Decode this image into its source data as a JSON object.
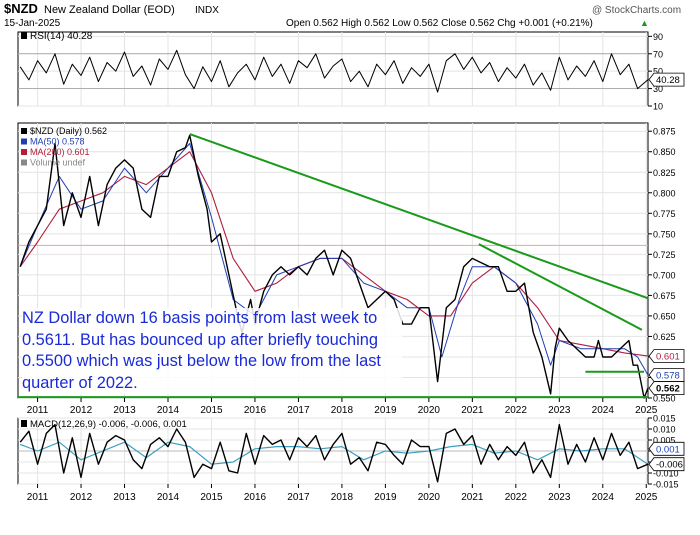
{
  "header": {
    "symbol": "$NZD",
    "name": "New Zealand Dollar (EOD)",
    "exchange": "INDX",
    "date": "15-Jan-2025",
    "ohlc_text": "Open 0.562  High 0.562  Low 0.562  Close 0.562  Chg +0.001 (+0.21%)",
    "ohlc_arrow": "▲",
    "watermark": "@ StockCharts.com"
  },
  "annotation": {
    "text": "NZ Dollar down 16 basis points from last week to 0.5611. But has bounced up after briefly touching 0.5500 which was just below the low from the last quarter of 2022."
  },
  "colors": {
    "price": "#000000",
    "ma50": "#1f3fb4",
    "ma200": "#b01e3c",
    "trendline": "#1a9a1a",
    "annotation_text": "#1a2bd6",
    "macd": "#000000",
    "macd_signal": "#3a9fbf",
    "rsi_line": "#000000",
    "resistance_line": "#f0a0a0"
  },
  "chart_data": [
    {
      "type": "line",
      "panel": "rsi",
      "label": "RSI(14) 40.28",
      "ylim": [
        10,
        95
      ],
      "ticks": [
        "90",
        "70",
        "50",
        "30",
        "10"
      ],
      "tick_values": [
        90,
        70,
        50,
        30,
        10
      ],
      "last_value_label": "40.28",
      "last_value": 40.28,
      "levels": [
        70,
        30
      ],
      "series": [
        {
          "name": "RSI(14)",
          "x": [
            2010.6,
            2010.8,
            2011.0,
            2011.2,
            2011.4,
            2011.6,
            2011.8,
            2012.0,
            2012.2,
            2012.4,
            2012.6,
            2012.8,
            2013.0,
            2013.2,
            2013.4,
            2013.6,
            2013.8,
            2014.0,
            2014.2,
            2014.4,
            2014.6,
            2014.8,
            2015.0,
            2015.2,
            2015.4,
            2015.6,
            2015.8,
            2016.0,
            2016.2,
            2016.4,
            2016.6,
            2016.8,
            2017.0,
            2017.2,
            2017.4,
            2017.6,
            2017.8,
            2018.0,
            2018.2,
            2018.4,
            2018.6,
            2018.8,
            2019.0,
            2019.2,
            2019.4,
            2019.6,
            2019.8,
            2020.0,
            2020.2,
            2020.4,
            2020.6,
            2020.8,
            2021.0,
            2021.2,
            2021.4,
            2021.6,
            2021.8,
            2022.0,
            2022.2,
            2022.4,
            2022.6,
            2022.8,
            2023.0,
            2023.2,
            2023.4,
            2023.6,
            2023.8,
            2024.0,
            2024.2,
            2024.4,
            2024.6,
            2024.8,
            2025.04
          ],
          "values": [
            55,
            40,
            62,
            48,
            70,
            35,
            58,
            45,
            66,
            38,
            60,
            50,
            72,
            44,
            56,
            34,
            64,
            52,
            74,
            46,
            30,
            55,
            38,
            62,
            32,
            48,
            58,
            40,
            66,
            44,
            58,
            36,
            62,
            54,
            70,
            42,
            56,
            64,
            38,
            50,
            32,
            58,
            46,
            62,
            36,
            54,
            44,
            58,
            26,
            62,
            70,
            52,
            66,
            48,
            60,
            38,
            54,
            42,
            58,
            34,
            48,
            28,
            66,
            40,
            56,
            44,
            62,
            38,
            70,
            46,
            58,
            30,
            40.28
          ]
        }
      ]
    },
    {
      "type": "line",
      "panel": "price",
      "ylim": [
        0.55,
        0.885
      ],
      "ticks": [
        "0.875",
        "0.850",
        "0.825",
        "0.800",
        "0.775",
        "0.750",
        "0.725",
        "0.700",
        "0.675",
        "0.650",
        "0.625",
        "0.600",
        "0.575",
        "0.550"
      ],
      "tick_values": [
        0.875,
        0.85,
        0.825,
        0.8,
        0.775,
        0.75,
        0.725,
        0.7,
        0.675,
        0.65,
        0.625,
        0.6,
        0.575,
        0.55
      ],
      "x_ticks": [
        "2011",
        "2012",
        "2013",
        "2014",
        "2015",
        "2016",
        "2017",
        "2018",
        "2019",
        "2020",
        "2021",
        "2022",
        "2023",
        "2024",
        "2025"
      ],
      "x_tick_values": [
        2011,
        2012,
        2013,
        2014,
        2015,
        2016,
        2017,
        2018,
        2019,
        2020,
        2021,
        2022,
        2023,
        2024,
        2025
      ],
      "legend": [
        {
          "label": "$NZD (Daily) 0.562",
          "color": "#000000"
        },
        {
          "label": "MA(50) 0.578",
          "color": "#1f3fb4"
        },
        {
          "label": "MA(200) 0.601",
          "color": "#b01e3c"
        },
        {
          "label": "Volume undef",
          "color": "#888888"
        }
      ],
      "value_badges": [
        {
          "label": "0.601",
          "value": 0.601
        },
        {
          "label": "0.578",
          "value": 0.578
        },
        {
          "label": "0.562",
          "value": 0.562
        }
      ],
      "horizontal_level": 0.736,
      "series": [
        {
          "name": "$NZD (Daily)",
          "x": [
            2010.6,
            2010.8,
            2011.0,
            2011.2,
            2011.4,
            2011.6,
            2011.8,
            2012.0,
            2012.2,
            2012.4,
            2012.6,
            2012.8,
            2013.0,
            2013.2,
            2013.4,
            2013.6,
            2013.8,
            2014.0,
            2014.2,
            2014.4,
            2014.5,
            2014.7,
            2014.9,
            2015.0,
            2015.2,
            2015.4,
            2015.6,
            2015.7,
            2015.9,
            2016.0,
            2016.2,
            2016.4,
            2016.6,
            2016.8,
            2017.0,
            2017.2,
            2017.4,
            2017.6,
            2017.8,
            2018.0,
            2018.2,
            2018.4,
            2018.6,
            2018.8,
            2019.0,
            2019.2,
            2019.4,
            2019.6,
            2019.8,
            2020.0,
            2020.2,
            2020.4,
            2020.6,
            2020.8,
            2021.0,
            2021.2,
            2021.4,
            2021.6,
            2021.8,
            2022.0,
            2022.2,
            2022.4,
            2022.6,
            2022.8,
            2022.9,
            2023.0,
            2023.2,
            2023.4,
            2023.6,
            2023.8,
            2023.9,
            2024.0,
            2024.2,
            2024.4,
            2024.6,
            2024.7,
            2024.8,
            2024.95,
            2025.04
          ],
          "values": [
            0.71,
            0.74,
            0.76,
            0.78,
            0.86,
            0.76,
            0.8,
            0.77,
            0.82,
            0.76,
            0.81,
            0.83,
            0.84,
            0.83,
            0.78,
            0.77,
            0.82,
            0.82,
            0.85,
            0.855,
            0.87,
            0.82,
            0.78,
            0.74,
            0.75,
            0.7,
            0.65,
            0.63,
            0.67,
            0.64,
            0.68,
            0.7,
            0.71,
            0.7,
            0.71,
            0.7,
            0.72,
            0.73,
            0.7,
            0.73,
            0.72,
            0.69,
            0.66,
            0.67,
            0.68,
            0.67,
            0.64,
            0.64,
            0.66,
            0.66,
            0.57,
            0.66,
            0.67,
            0.71,
            0.72,
            0.715,
            0.71,
            0.71,
            0.68,
            0.68,
            0.69,
            0.63,
            0.6,
            0.555,
            0.61,
            0.635,
            0.62,
            0.61,
            0.6,
            0.6,
            0.62,
            0.6,
            0.6,
            0.61,
            0.62,
            0.59,
            0.59,
            0.55,
            0.562
          ]
        },
        {
          "name": "MA(50)",
          "x": [
            2010.6,
            2011.0,
            2011.5,
            2012.0,
            2012.5,
            2013.0,
            2013.5,
            2014.0,
            2014.5,
            2015.0,
            2015.5,
            2016.0,
            2016.5,
            2017.0,
            2017.5,
            2018.0,
            2018.5,
            2019.0,
            2019.5,
            2020.0,
            2020.3,
            2020.7,
            2021.0,
            2021.5,
            2022.0,
            2022.5,
            2022.8,
            2023.0,
            2023.5,
            2024.0,
            2024.5,
            2024.8,
            2025.04
          ],
          "values": [
            0.71,
            0.76,
            0.82,
            0.78,
            0.79,
            0.83,
            0.8,
            0.83,
            0.86,
            0.77,
            0.67,
            0.65,
            0.7,
            0.71,
            0.72,
            0.72,
            0.69,
            0.68,
            0.66,
            0.66,
            0.6,
            0.67,
            0.71,
            0.71,
            0.69,
            0.64,
            0.59,
            0.62,
            0.61,
            0.61,
            0.61,
            0.6,
            0.578
          ]
        },
        {
          "name": "MA(200)",
          "x": [
            2010.6,
            2011.0,
            2011.5,
            2012.0,
            2012.5,
            2013.0,
            2013.5,
            2014.0,
            2014.5,
            2015.0,
            2015.5,
            2016.0,
            2016.5,
            2017.0,
            2017.5,
            2018.0,
            2018.5,
            2019.0,
            2019.5,
            2020.0,
            2020.5,
            2021.0,
            2021.5,
            2022.0,
            2022.5,
            2023.0,
            2023.5,
            2024.0,
            2024.5,
            2025.04
          ],
          "values": [
            0.71,
            0.74,
            0.78,
            0.79,
            0.8,
            0.82,
            0.81,
            0.83,
            0.85,
            0.8,
            0.72,
            0.68,
            0.69,
            0.71,
            0.72,
            0.72,
            0.7,
            0.68,
            0.67,
            0.65,
            0.65,
            0.69,
            0.71,
            0.69,
            0.66,
            0.62,
            0.615,
            0.61,
            0.605,
            0.601
          ]
        }
      ],
      "trendlines": [
        {
          "x": [
            2014.5,
            2025.04
          ],
          "y": [
            0.8715,
            0.6715
          ]
        },
        {
          "x": [
            2021.15,
            2024.9
          ],
          "y": [
            0.7375,
            0.633
          ]
        },
        {
          "x": [
            2023.6,
            2024.95
          ],
          "y": [
            0.582,
            0.582
          ]
        },
        {
          "x": [
            2010.55,
            2025.04
          ],
          "y": [
            0.551,
            0.551
          ]
        }
      ]
    },
    {
      "type": "line",
      "panel": "macd",
      "label": "MACD(12,26,9) -0.006, -0.006, 0.001",
      "ylim": [
        -0.015,
        0.015
      ],
      "ticks": [
        "0.015",
        "0.010",
        "0.005",
        "0.000",
        "-0.005",
        "-0.010",
        "-0.015"
      ],
      "tick_values": [
        0.015,
        0.01,
        0.005,
        0.0,
        -0.005,
        -0.01,
        -0.015
      ],
      "value_badges": [
        {
          "label": "0.001",
          "value": 0.001
        },
        {
          "label": "-0.006",
          "value": -0.006
        }
      ],
      "x_ticks": [
        "2011",
        "2012",
        "2013",
        "2014",
        "2015",
        "2016",
        "2017",
        "2018",
        "2019",
        "2020",
        "2021",
        "2022",
        "2023",
        "2024",
        "2025"
      ],
      "x_tick_values": [
        2011,
        2012,
        2013,
        2014,
        2015,
        2016,
        2017,
        2018,
        2019,
        2020,
        2021,
        2022,
        2023,
        2024,
        2025
      ],
      "series": [
        {
          "name": "MACD",
          "x": [
            2010.6,
            2010.8,
            2011.0,
            2011.2,
            2011.4,
            2011.6,
            2011.8,
            2012.0,
            2012.2,
            2012.4,
            2012.6,
            2012.8,
            2013.0,
            2013.2,
            2013.4,
            2013.6,
            2013.8,
            2014.0,
            2014.2,
            2014.4,
            2014.6,
            2014.8,
            2015.0,
            2015.2,
            2015.4,
            2015.6,
            2015.8,
            2016.0,
            2016.2,
            2016.4,
            2016.6,
            2016.8,
            2017.0,
            2017.2,
            2017.4,
            2017.6,
            2017.8,
            2018.0,
            2018.2,
            2018.4,
            2018.6,
            2018.8,
            2019.0,
            2019.2,
            2019.4,
            2019.6,
            2019.8,
            2020.0,
            2020.2,
            2020.4,
            2020.6,
            2020.8,
            2021.0,
            2021.2,
            2021.4,
            2021.6,
            2021.8,
            2022.0,
            2022.2,
            2022.4,
            2022.6,
            2022.8,
            2023.0,
            2023.2,
            2023.4,
            2023.6,
            2023.8,
            2024.0,
            2024.2,
            2024.4,
            2024.6,
            2024.8,
            2025.04
          ],
          "values": [
            0.004,
            0.009,
            -0.006,
            0.008,
            0.012,
            -0.01,
            0.006,
            -0.012,
            0.008,
            -0.006,
            0.004,
            0.007,
            0.005,
            -0.004,
            -0.008,
            0.003,
            0.006,
            0.002,
            0.01,
            0.004,
            -0.012,
            -0.006,
            -0.008,
            0.004,
            -0.009,
            -0.01,
            0.008,
            -0.006,
            0.007,
            0.003,
            0.005,
            -0.004,
            0.006,
            0.002,
            0.007,
            -0.004,
            0.003,
            0.008,
            -0.006,
            -0.003,
            -0.009,
            0.004,
            0.003,
            -0.002,
            -0.006,
            0.005,
            0.002,
            0.002,
            -0.014,
            0.008,
            0.01,
            0.003,
            0.007,
            -0.006,
            0.003,
            -0.004,
            0.002,
            -0.002,
            0.004,
            -0.01,
            -0.004,
            -0.012,
            0.012,
            -0.006,
            0.003,
            -0.005,
            0.006,
            -0.004,
            0.008,
            -0.002,
            0.004,
            -0.008,
            -0.006
          ]
        },
        {
          "name": "Signal",
          "x": [
            2010.6,
            2011.0,
            2011.5,
            2012.0,
            2012.5,
            2013.0,
            2013.5,
            2014.0,
            2014.5,
            2015.0,
            2015.5,
            2016.0,
            2016.5,
            2017.0,
            2017.5,
            2018.0,
            2018.5,
            2019.0,
            2019.5,
            2020.0,
            2020.5,
            2021.0,
            2021.5,
            2022.0,
            2022.5,
            2023.0,
            2023.5,
            2024.0,
            2024.5,
            2025.04
          ],
          "values": [
            0.003,
            0.0,
            0.004,
            -0.004,
            0.0,
            0.004,
            -0.003,
            0.004,
            0.002,
            -0.006,
            -0.005,
            0.001,
            0.002,
            0.002,
            0.001,
            0.002,
            -0.004,
            0.0,
            -0.001,
            0.0,
            0.002,
            0.003,
            -0.001,
            0.0,
            -0.004,
            0.001,
            0.0,
            0.001,
            0.001,
            -0.006
          ]
        }
      ]
    }
  ]
}
